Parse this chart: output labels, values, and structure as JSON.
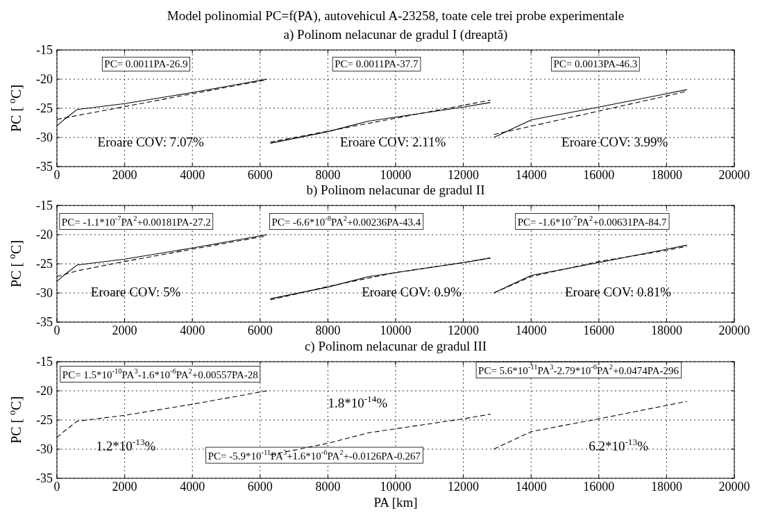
{
  "chart_data": [
    {
      "type": "line",
      "title": "Model polinomial PC=f(PA), autovehicul A-23258, toate cele trei probe experimentale",
      "subtitle": "a) Polinom nelacunar de gradul I (dreaptă)",
      "ylabel": "PC [ $^{o}$C]",
      "xlim": [
        0,
        20000
      ],
      "xticks": [
        0,
        2000,
        4000,
        6000,
        8000,
        10000,
        12000,
        14000,
        16000,
        18000,
        20000
      ],
      "ylim": [
        -35,
        -15
      ],
      "yticks": [
        -35,
        -30,
        -25,
        -20,
        -15
      ],
      "grid": true,
      "series": [
        {
          "color": "#000000",
          "line_style": "solid",
          "x": [
            0,
            200,
            600,
            2000,
            4000,
            6200
          ],
          "values": [
            -28,
            -27,
            -25.2,
            -24.2,
            -22.3,
            -20
          ]
        },
        {
          "color": "#000000",
          "line_style": "solid",
          "x": [
            6300,
            8000,
            9200,
            12000,
            12800
          ],
          "values": [
            -31,
            -29,
            -27.2,
            -24.8,
            -24
          ]
        },
        {
          "color": "#000000",
          "line_style": "solid",
          "x": [
            12900,
            14000,
            16000,
            18000,
            18600
          ],
          "values": [
            -30,
            -27,
            -24.8,
            -22.5,
            -21.8
          ]
        },
        {
          "color": "#000000",
          "line_style": "dashed",
          "x": [
            0,
            6200
          ],
          "values": [
            -26.9,
            -20.1
          ]
        },
        {
          "color": "#000000",
          "line_style": "dashed",
          "x": [
            6300,
            12800
          ],
          "values": [
            -30.8,
            -23.6
          ]
        },
        {
          "color": "#000000",
          "line_style": "dashed",
          "x": [
            12900,
            18600
          ],
          "values": [
            -29.5,
            -22.1
          ]
        }
      ],
      "annotations": [
        "PC= 0.0011PA-26.9",
        "PC= 0.0011PA-37.7",
        "PC= 0.0013PA-46.3",
        "Eroare COV: 7.07%",
        "Eroare COV: 2.11%",
        "Eroare COV: 3.99%"
      ]
    },
    {
      "type": "line",
      "subtitle": "b) Polinom nelacunar de gradul II",
      "ylabel": "PC [ $^{o}$C]",
      "xlim": [
        0,
        20000
      ],
      "xticks": [
        0,
        2000,
        4000,
        6000,
        8000,
        10000,
        12000,
        14000,
        16000,
        18000,
        20000
      ],
      "ylim": [
        -35,
        -15
      ],
      "yticks": [
        -35,
        -30,
        -25,
        -20,
        -15
      ],
      "grid": true,
      "series": [
        {
          "color": "#000000",
          "line_style": "solid",
          "x": [
            0,
            200,
            600,
            2000,
            4000,
            6200
          ],
          "values": [
            -28,
            -27,
            -25.2,
            -24.2,
            -22.3,
            -20
          ]
        },
        {
          "color": "#000000",
          "line_style": "solid",
          "x": [
            6300,
            8000,
            9200,
            12000,
            12800
          ],
          "values": [
            -31,
            -29,
            -27.2,
            -24.8,
            -24
          ]
        },
        {
          "color": "#000000",
          "line_style": "solid",
          "x": [
            12900,
            14000,
            16000,
            18000,
            18600
          ],
          "values": [
            -30,
            -27,
            -24.8,
            -22.5,
            -21.8
          ]
        },
        {
          "color": "#000000",
          "line_style": "dashed",
          "x": [
            0,
            600,
            2000,
            4000,
            6200
          ],
          "values": [
            -27.2,
            -26.2,
            -24.6,
            -22.5,
            -20.2
          ]
        },
        {
          "color": "#000000",
          "line_style": "dashed",
          "x": [
            6300,
            8000,
            10000,
            12000,
            12800
          ],
          "values": [
            -31.2,
            -28.9,
            -26.5,
            -24.8,
            -24
          ]
        },
        {
          "color": "#000000",
          "line_style": "dashed",
          "x": [
            12900,
            14000,
            16000,
            18000,
            18600
          ],
          "values": [
            -30,
            -27.2,
            -24.6,
            -22.7,
            -22
          ]
        }
      ],
      "annotations": [
        "PC= -1.1*10$^{-7}$PA$^{2}$+0.00181PA-27.2",
        "PC= -6.6*10$^{-8}$PA$^{2}$+0.00236PA-43.4",
        "PC= -1.6*10$^{-7}$PA$^{2}$+0.00631PA-84.7",
        "Eroare COV: 5%",
        "Eroare COV: 0.9%",
        "Eroare COV: 0.81%"
      ]
    },
    {
      "type": "line",
      "subtitle": "c) Polinom nelacunar de gradul III",
      "xlabel": "PA [km]",
      "ylabel": "PC [ $^{o}$C]",
      "xlim": [
        0,
        20000
      ],
      "xticks": [
        0,
        2000,
        4000,
        6000,
        8000,
        10000,
        12000,
        14000,
        16000,
        18000,
        20000
      ],
      "ylim": [
        -35,
        -15
      ],
      "yticks": [
        -35,
        -30,
        -25,
        -20,
        -15
      ],
      "grid": true,
      "series": [
        {
          "color": "#000000",
          "line_style": "dashed",
          "x": [
            0,
            200,
            600,
            2000,
            4000,
            6200
          ],
          "values": [
            -28,
            -27,
            -25.2,
            -24.2,
            -22.3,
            -20
          ]
        },
        {
          "color": "#000000",
          "line_style": "dashed",
          "x": [
            6300,
            8000,
            9200,
            12000,
            12800
          ],
          "values": [
            -31,
            -29,
            -27.2,
            -24.8,
            -24
          ]
        },
        {
          "color": "#000000",
          "line_style": "dashed",
          "x": [
            12900,
            14000,
            16000,
            18000,
            18600
          ],
          "values": [
            -30,
            -27,
            -24.8,
            -22.5,
            -21.8
          ]
        }
      ],
      "annotations": [
        "PC= 1.5*10$^{-10}$PA$^{3}$-1.6*10$^{-6}$PA$^{2}$+0.00557PA-28",
        "PC= -5.9*10$^{-11}$PA$^{3}$+1.6*10$^{-6}$PA$^{2}$+-0.0126PA-0.267",
        "PC= 5.6*10$^{-11}$PA$^{3}$-2.79*10$^{-6}$PA$^{2}$+0.0474PA-296",
        "1.2*10$^{-13}$%",
        "1.8*10$^{-14}$%",
        "6.2*10$^{-13}$%"
      ]
    }
  ]
}
